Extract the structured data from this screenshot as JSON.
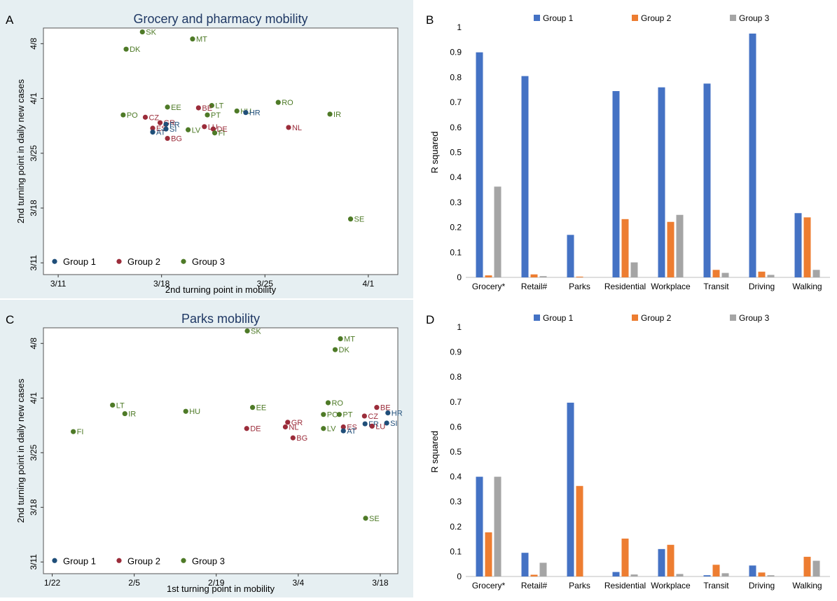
{
  "colors": {
    "group1": "#1f4e79",
    "group2": "#9b2c3a",
    "group3": "#4e7a27",
    "bar1": "#4472c4",
    "bar2": "#ed7d31",
    "bar3": "#a5a5a5",
    "scatterBg": "#e6eff2",
    "scatterPlotBg": "#ffffff"
  },
  "chart_data": [
    {
      "panel": "A",
      "type": "scatter",
      "title": "Grocery and pharmacy  mobility",
      "xlabel": "2nd turning point in mobility",
      "ylabel": "2nd turning point in daily new cases",
      "xlim": [
        -1,
        23
      ],
      "ylim": [
        -1.5,
        30
      ],
      "xticks": [
        {
          "v": 0,
          "label": "3/11"
        },
        {
          "v": 7,
          "label": "3/18"
        },
        {
          "v": 14,
          "label": "3/25"
        },
        {
          "v": 21,
          "label": "4/1"
        }
      ],
      "yticks": [
        {
          "v": 0,
          "label": "3/11"
        },
        {
          "v": 7,
          "label": "3/18"
        },
        {
          "v": 14,
          "label": "3/25"
        },
        {
          "v": 21,
          "label": "4/1"
        },
        {
          "v": 28,
          "label": "4/8"
        }
      ],
      "legend": [
        {
          "group": 1,
          "label": "Group 1"
        },
        {
          "group": 2,
          "label": "Group 2"
        },
        {
          "group": 3,
          "label": "Group 3"
        }
      ],
      "points": [
        {
          "label": "SK",
          "x": 5.7,
          "y": 29.5,
          "group": 3
        },
        {
          "label": "MT",
          "x": 9.1,
          "y": 28.6,
          "group": 3
        },
        {
          "label": "DK",
          "x": 4.6,
          "y": 27.3,
          "group": 3
        },
        {
          "label": "RO",
          "x": 14.9,
          "y": 20.5,
          "group": 3
        },
        {
          "label": "LT",
          "x": 10.4,
          "y": 20.1,
          "group": 3
        },
        {
          "label": "EE",
          "x": 7.4,
          "y": 19.9,
          "group": 3
        },
        {
          "label": "BE",
          "x": 9.5,
          "y": 19.8,
          "group": 2
        },
        {
          "label": "HU",
          "x": 12.1,
          "y": 19.4,
          "group": 3
        },
        {
          "label": "HR",
          "x": 12.7,
          "y": 19.2,
          "group": 1
        },
        {
          "label": "IR",
          "x": 18.4,
          "y": 19.0,
          "group": 3
        },
        {
          "label": "PO",
          "x": 4.4,
          "y": 18.9,
          "group": 3
        },
        {
          "label": "PT",
          "x": 10.1,
          "y": 18.9,
          "group": 3
        },
        {
          "label": "CZ",
          "x": 5.9,
          "y": 18.6,
          "group": 2
        },
        {
          "label": "GR",
          "x": 6.9,
          "y": 17.9,
          "group": 2
        },
        {
          "label": "FR",
          "x": 7.3,
          "y": 17.7,
          "group": 1
        },
        {
          "label": "LU",
          "x": 9.9,
          "y": 17.4,
          "group": 2
        },
        {
          "label": "NL",
          "x": 15.6,
          "y": 17.3,
          "group": 2
        },
        {
          "label": "ES",
          "x": 6.4,
          "y": 17.2,
          "group": 2
        },
        {
          "label": "SI",
          "x": 7.3,
          "y": 17.1,
          "group": 1
        },
        {
          "label": "DE",
          "x": 10.5,
          "y": 17.1,
          "group": 2
        },
        {
          "label": "LV",
          "x": 8.8,
          "y": 17.0,
          "group": 3
        },
        {
          "label": "AT",
          "x": 6.4,
          "y": 16.7,
          "group": 1
        },
        {
          "label": "FI",
          "x": 10.6,
          "y": 16.6,
          "group": 3
        },
        {
          "label": "BG",
          "x": 7.4,
          "y": 15.9,
          "group": 2
        },
        {
          "label": "SE",
          "x": 19.8,
          "y": 5.6,
          "group": 3
        }
      ]
    },
    {
      "panel": "B",
      "type": "bar",
      "ylabel": "R squared",
      "ylim": [
        0,
        1
      ],
      "yticks": [
        "0",
        "0.1",
        "0.2",
        "0.3",
        "0.4",
        "0.5",
        "0.6",
        "0.7",
        "0.8",
        "0.9",
        "1"
      ],
      "categories": [
        "Grocery*",
        "Retail#",
        "Parks",
        "Residential",
        "Workplace",
        "Transit",
        "Driving",
        "Walking"
      ],
      "series": [
        {
          "name": "Group 1",
          "values": [
            0.9,
            0.805,
            0.17,
            0.745,
            0.76,
            0.775,
            0.975,
            0.257
          ]
        },
        {
          "name": "Group 2",
          "values": [
            0.008,
            0.012,
            0.003,
            0.233,
            0.222,
            0.03,
            0.023,
            0.24
          ]
        },
        {
          "name": "Group 3",
          "values": [
            0.363,
            0.005,
            0,
            0.06,
            0.25,
            0.018,
            0.01,
            0.03
          ]
        }
      ]
    },
    {
      "panel": "C",
      "type": "scatter",
      "title": "Parks mobility",
      "xlabel": "1st turning point in mobility",
      "ylabel": "2nd turning point in daily new cases",
      "xlim": [
        -1.5,
        59
      ],
      "ylim": [
        -1.5,
        30
      ],
      "xticks": [
        {
          "v": 0,
          "label": "1/22"
        },
        {
          "v": 14,
          "label": "2/5"
        },
        {
          "v": 28,
          "label": "2/19"
        },
        {
          "v": 42,
          "label": "3/4"
        },
        {
          "v": 56,
          "label": "3/18"
        }
      ],
      "yticks": [
        {
          "v": 0,
          "label": "3/11"
        },
        {
          "v": 7,
          "label": "3/18"
        },
        {
          "v": 14,
          "label": "3/25"
        },
        {
          "v": 21,
          "label": "4/1"
        },
        {
          "v": 28,
          "label": "4/8"
        }
      ],
      "legend": [
        {
          "group": 1,
          "label": "Group 1"
        },
        {
          "group": 2,
          "label": "Group 2"
        },
        {
          "group": 3,
          "label": "Group 3"
        }
      ],
      "points": [
        {
          "label": "SK",
          "x": 33.3,
          "y": 29.6,
          "group": 3
        },
        {
          "label": "MT",
          "x": 49.2,
          "y": 28.6,
          "group": 3
        },
        {
          "label": "DK",
          "x": 48.3,
          "y": 27.2,
          "group": 3
        },
        {
          "label": "RO",
          "x": 47.1,
          "y": 20.4,
          "group": 3
        },
        {
          "label": "LT",
          "x": 10.3,
          "y": 20.1,
          "group": 3
        },
        {
          "label": "EE",
          "x": 34.2,
          "y": 19.8,
          "group": 3
        },
        {
          "label": "BE",
          "x": 55.4,
          "y": 19.8,
          "group": 2
        },
        {
          "label": "HU",
          "x": 22.8,
          "y": 19.3,
          "group": 3
        },
        {
          "label": "HR",
          "x": 57.3,
          "y": 19.1,
          "group": 1
        },
        {
          "label": "IR",
          "x": 12.4,
          "y": 19.0,
          "group": 3
        },
        {
          "label": "PO",
          "x": 46.3,
          "y": 18.9,
          "group": 3
        },
        {
          "label": "PT",
          "x": 49.0,
          "y": 18.9,
          "group": 3
        },
        {
          "label": "CZ",
          "x": 53.3,
          "y": 18.7,
          "group": 2
        },
        {
          "label": "GR",
          "x": 40.2,
          "y": 17.9,
          "group": 2
        },
        {
          "label": "SI",
          "x": 57.1,
          "y": 17.8,
          "group": 1
        },
        {
          "label": "FR",
          "x": 53.4,
          "y": 17.7,
          "group": 1
        },
        {
          "label": "NL",
          "x": 39.8,
          "y": 17.3,
          "group": 2
        },
        {
          "label": "ES",
          "x": 49.7,
          "y": 17.3,
          "group": 2
        },
        {
          "label": "LU",
          "x": 54.6,
          "y": 17.4,
          "group": 2
        },
        {
          "label": "DE",
          "x": 33.2,
          "y": 17.1,
          "group": 2
        },
        {
          "label": "LV",
          "x": 46.3,
          "y": 17.1,
          "group": 3
        },
        {
          "label": "AT",
          "x": 49.7,
          "y": 16.8,
          "group": 1
        },
        {
          "label": "FI",
          "x": 3.6,
          "y": 16.7,
          "group": 3
        },
        {
          "label": "BG",
          "x": 41.1,
          "y": 15.9,
          "group": 2
        },
        {
          "label": "SE",
          "x": 53.5,
          "y": 5.6,
          "group": 3
        }
      ]
    },
    {
      "panel": "D",
      "type": "bar",
      "ylabel": "R squared",
      "ylim": [
        0,
        1
      ],
      "yticks": [
        "0",
        "0.1",
        "0.2",
        "0.3",
        "0.4",
        "0.5",
        "0.6",
        "0.7",
        "0.8",
        "0.9",
        "1"
      ],
      "categories": [
        "Grocery*",
        "Retail#",
        "Parks",
        "Residential",
        "Workplace",
        "Transit",
        "Driving",
        "Walking"
      ],
      "series": [
        {
          "name": "Group 1",
          "values": [
            0.4,
            0.095,
            0.697,
            0.018,
            0.11,
            0.005,
            0.044,
            0
          ]
        },
        {
          "name": "Group 2",
          "values": [
            0.177,
            0.007,
            0.363,
            0.152,
            0.127,
            0.047,
            0.016,
            0.079
          ]
        },
        {
          "name": "Group 3",
          "values": [
            0.4,
            0.055,
            0,
            0.008,
            0.01,
            0.013,
            0.005,
            0.063
          ]
        }
      ]
    }
  ]
}
